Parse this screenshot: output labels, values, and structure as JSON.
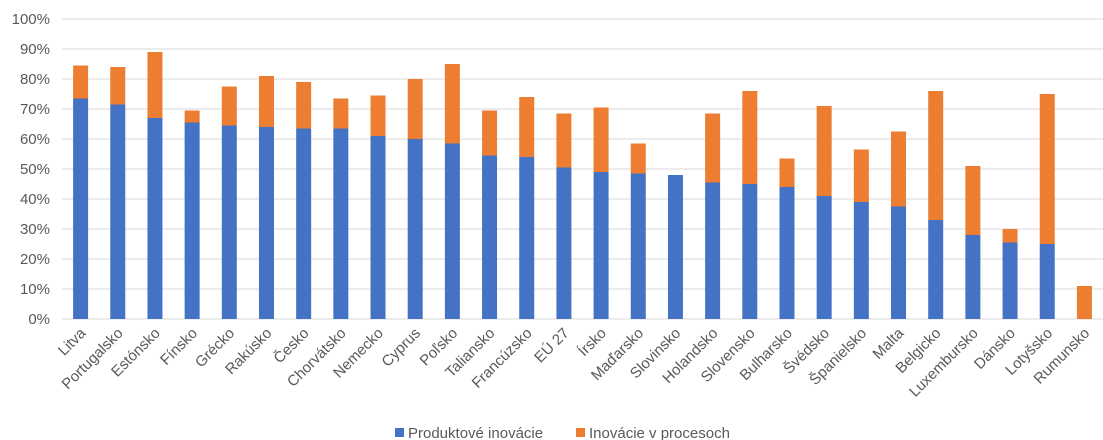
{
  "chart_data": {
    "type": "bar",
    "stacked": true,
    "categories": [
      "Litva",
      "Portugalsko",
      "Estónsko",
      "Fínsko",
      "Grécko",
      "Rakúsko",
      "Česko",
      "Chorvátsko",
      "Nemecko",
      "Cyprus",
      "Poľsko",
      "Taliansko",
      "Francúzsko",
      "EÚ 27",
      "Írsko",
      "Maďarsko",
      "Slovinsko",
      "Holandsko",
      "Slovensko",
      "Bulharsko",
      "Švédsko",
      "Španielsko",
      "Malta",
      "Belgicko",
      "Luxembursko",
      "Dánsko",
      "Lotyšsko",
      "Rumunsko"
    ],
    "series": [
      {
        "name": "Produktové inovácie",
        "color": "#4472c4",
        "values": [
          73.5,
          71.5,
          67,
          65.5,
          64.5,
          64,
          63.5,
          63.5,
          61,
          60,
          58.5,
          54.5,
          54,
          50.5,
          49,
          48.5,
          48,
          45.5,
          45,
          44,
          41,
          39,
          37.5,
          33,
          28,
          25.5,
          25,
          0
        ]
      },
      {
        "name": "Inovácie v procesoch",
        "color": "#ed7d31",
        "values": [
          11,
          12.5,
          22,
          4,
          13,
          17,
          15.5,
          10,
          13.5,
          20,
          26.5,
          15,
          20,
          18,
          21.5,
          10,
          0,
          23,
          31,
          9.5,
          30,
          17.5,
          25,
          43,
          23,
          4.5,
          50,
          11
        ]
      }
    ],
    "yticks": [
      "0%",
      "10%",
      "20%",
      "30%",
      "40%",
      "50%",
      "60%",
      "70%",
      "80%",
      "90%",
      "100%"
    ],
    "ylim": [
      0,
      100
    ],
    "grid": true,
    "legend_position": "bottom-center"
  }
}
